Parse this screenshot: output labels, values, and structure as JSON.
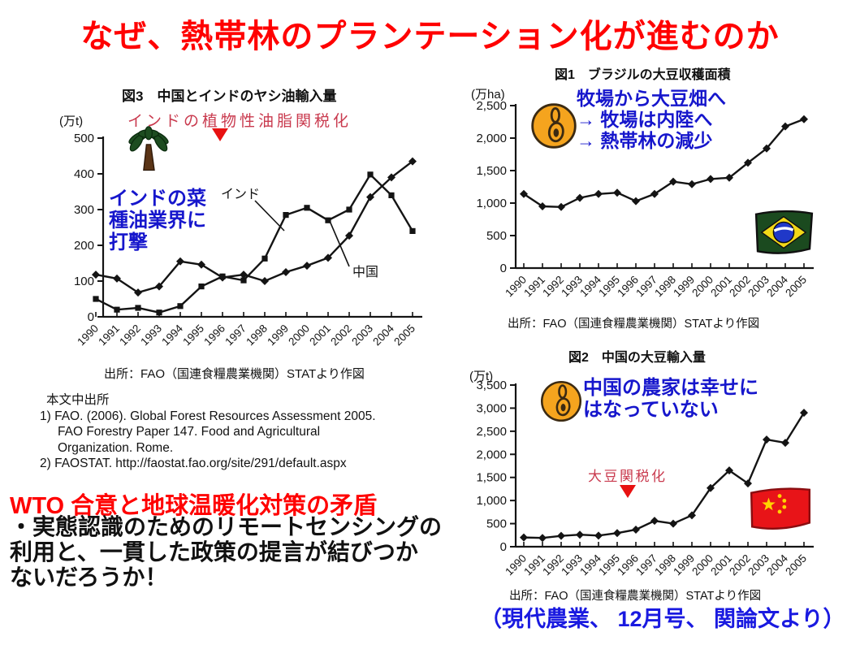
{
  "slide": {
    "title": "なぜ、熱帯林のプランテーション化が進むのか",
    "credit": "（現代農業、 12月号、 関論文より）"
  },
  "colors": {
    "title_red": "#ff0000",
    "annotation_red": "#c93a4e",
    "marker_red": "#e81111",
    "callout_blue": "#1616cc",
    "credit_blue": "#1a1ae0"
  },
  "references": {
    "heading": "本文中出所",
    "item1_lines": [
      "1) FAO. (2006). Global Forest Resources Assessment 2005.",
      "FAO Forestry Paper 147. Food and Agricultural",
      "Organization. Rome."
    ],
    "item2_line": "2) FAOSTAT. http://faostat.fao.org/site/291/default.aspx"
  },
  "conclusion": {
    "heading": "WTO 合意と地球温暖化対策の矛盾",
    "lines": [
      "・実態認識のためのリモートセンシングの",
      "利用と、一貫した政策の提言が結びつか",
      "ないだろうか！"
    ]
  },
  "chart_data": [
    {
      "id": "fig3",
      "type": "line",
      "title": "図3　中国とインドのヤシ油輸入量",
      "unit": "(万t)",
      "ylim": [
        0,
        500
      ],
      "yticks": [
        0,
        100,
        200,
        300,
        400,
        500
      ],
      "categories": [
        "1990",
        "1991",
        "1992",
        "1993",
        "1994",
        "1995",
        "1996",
        "1997",
        "1998",
        "1999",
        "2000",
        "2001",
        "2002",
        "2003",
        "2004",
        "2005"
      ],
      "series": [
        {
          "name": "インド",
          "marker": "square",
          "values": [
            50,
            20,
            25,
            12,
            30,
            85,
            113,
            102,
            163,
            285,
            305,
            270,
            300,
            398,
            340,
            240
          ]
        },
        {
          "name": "中国",
          "marker": "diamond",
          "values": [
            118,
            107,
            68,
            85,
            155,
            146,
            110,
            118,
            100,
            125,
            143,
            165,
            227,
            335,
            390,
            435
          ]
        }
      ],
      "source": "出所：FAO（国連食糧農業機関）STATより作図",
      "annotations": {
        "tariff_label": "インドの植物性油脂関税化",
        "callout_lines": [
          "インドの菜",
          "種油業界に",
          "打撃"
        ]
      }
    },
    {
      "id": "fig1",
      "type": "line",
      "title": "図1　ブラジルの大豆収穫面積",
      "unit": "(万ha)",
      "ylim": [
        0,
        2500
      ],
      "yticks": [
        0,
        500,
        1000,
        1500,
        2000,
        2500
      ],
      "categories": [
        "1990",
        "1991",
        "1992",
        "1993",
        "1994",
        "1995",
        "1996",
        "1997",
        "1998",
        "1999",
        "2000",
        "2001",
        "2002",
        "2003",
        "2004",
        "2005"
      ],
      "series": [
        {
          "marker": "diamond",
          "values": [
            1140,
            950,
            940,
            1080,
            1140,
            1160,
            1030,
            1140,
            1330,
            1290,
            1370,
            1390,
            1620,
            1840,
            2180,
            2290
          ]
        }
      ],
      "source": "出所：FAO（国連食糧農業機関）STATより作図",
      "annotations": {
        "callout_lines": [
          "牧場から大豆畑へ",
          "→ 牧場は内陸へ",
          "→ 熱帯林の減少"
        ]
      }
    },
    {
      "id": "fig2",
      "type": "line",
      "title": "図2　中国の大豆輸入量",
      "unit": "(万t)",
      "ylim": [
        0,
        3500
      ],
      "yticks": [
        0,
        500,
        1000,
        1500,
        2000,
        2500,
        3000,
        3500
      ],
      "categories": [
        "1990",
        "1991",
        "1992",
        "1993",
        "1994",
        "1995",
        "1996",
        "1997",
        "1998",
        "1999",
        "2000",
        "2001",
        "2002",
        "2003",
        "2004",
        "2005"
      ],
      "series": [
        {
          "marker": "diamond",
          "values": [
            200,
            190,
            235,
            260,
            240,
            295,
            370,
            560,
            500,
            680,
            1270,
            1650,
            1370,
            2320,
            2250,
            2900
          ]
        }
      ],
      "source": "出所：FAO（国連食糧農業機関）STATより作図",
      "annotations": {
        "tariff_label": "大豆関税化",
        "callout_lines": [
          "中国の農家は幸せに",
          "はなっていない"
        ]
      }
    }
  ]
}
